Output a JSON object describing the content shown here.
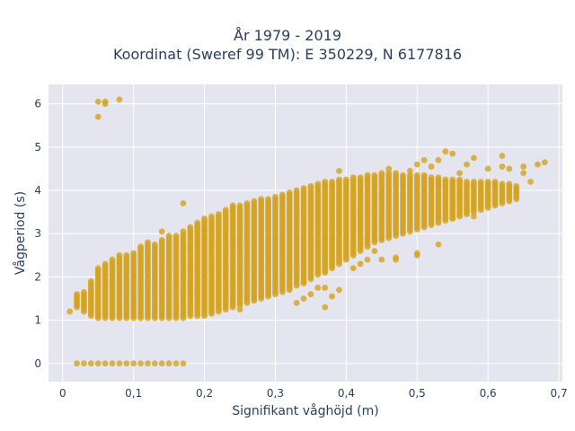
{
  "chart_data": {
    "type": "scatter",
    "title_line1": "År 1979 - 2019",
    "title_line2": "Koordinat (Sweref 99 TM): E 350229, N 6177816",
    "xlabel": "Signifikant våghöjd (m)",
    "ylabel": "Vågperiod (s)",
    "xlim": [
      -0.02,
      0.705
    ],
    "ylim": [
      -0.42,
      6.45
    ],
    "x_ticks": [
      0,
      0.1,
      0.2,
      0.3,
      0.4,
      0.5,
      0.6,
      0.7
    ],
    "x_tick_labels": [
      "0",
      "0,1",
      "0,2",
      "0,3",
      "0,4",
      "0,5",
      "0,6",
      "0,7"
    ],
    "y_ticks": [
      0,
      1,
      2,
      3,
      4,
      5,
      6
    ],
    "y_tick_labels": [
      "0",
      "1",
      "2",
      "3",
      "4",
      "5",
      "6"
    ],
    "grid": true,
    "marker_color": "#d4a31e",
    "plot_bg": "#e5e5ef",
    "column_ranges": [
      [
        0.02,
        1.3,
        1.6
      ],
      [
        0.03,
        1.2,
        1.65
      ],
      [
        0.04,
        1.1,
        1.9
      ],
      [
        0.05,
        1.05,
        2.2
      ],
      [
        0.06,
        1.05,
        2.3
      ],
      [
        0.07,
        1.05,
        2.4
      ],
      [
        0.08,
        1.05,
        2.5
      ],
      [
        0.09,
        1.05,
        2.5
      ],
      [
        0.1,
        1.05,
        2.55
      ],
      [
        0.11,
        1.05,
        2.7
      ],
      [
        0.12,
        1.05,
        2.8
      ],
      [
        0.13,
        1.05,
        2.75
      ],
      [
        0.14,
        1.05,
        2.85
      ],
      [
        0.15,
        1.05,
        2.95
      ],
      [
        0.16,
        1.05,
        2.95
      ],
      [
        0.17,
        1.05,
        3.05
      ],
      [
        0.18,
        1.1,
        3.15
      ],
      [
        0.19,
        1.1,
        3.25
      ],
      [
        0.2,
        1.1,
        3.35
      ],
      [
        0.21,
        1.15,
        3.4
      ],
      [
        0.22,
        1.2,
        3.45
      ],
      [
        0.23,
        1.25,
        3.55
      ],
      [
        0.24,
        1.3,
        3.65
      ],
      [
        0.25,
        1.35,
        3.65
      ],
      [
        0.26,
        1.4,
        3.7
      ],
      [
        0.27,
        1.45,
        3.75
      ],
      [
        0.28,
        1.5,
        3.8
      ],
      [
        0.29,
        1.55,
        3.8
      ],
      [
        0.3,
        1.6,
        3.85
      ],
      [
        0.31,
        1.65,
        3.9
      ],
      [
        0.32,
        1.7,
        3.95
      ],
      [
        0.33,
        1.8,
        4.0
      ],
      [
        0.34,
        1.85,
        4.05
      ],
      [
        0.35,
        1.95,
        4.1
      ],
      [
        0.36,
        2.05,
        4.15
      ],
      [
        0.37,
        2.1,
        4.2
      ],
      [
        0.38,
        2.2,
        4.2
      ],
      [
        0.39,
        2.3,
        4.25
      ],
      [
        0.4,
        2.4,
        4.25
      ],
      [
        0.41,
        2.5,
        4.3
      ],
      [
        0.42,
        2.6,
        4.3
      ],
      [
        0.43,
        2.7,
        4.35
      ],
      [
        0.44,
        2.8,
        4.35
      ],
      [
        0.45,
        2.85,
        4.4
      ],
      [
        0.46,
        2.9,
        4.4
      ],
      [
        0.47,
        2.95,
        4.4
      ],
      [
        0.48,
        3.0,
        4.35
      ],
      [
        0.49,
        3.05,
        4.35
      ],
      [
        0.5,
        3.1,
        4.35
      ],
      [
        0.51,
        3.15,
        4.35
      ],
      [
        0.52,
        3.2,
        4.3
      ],
      [
        0.53,
        3.25,
        4.3
      ],
      [
        0.54,
        3.3,
        4.25
      ],
      [
        0.55,
        3.35,
        4.25
      ],
      [
        0.56,
        3.4,
        4.25
      ],
      [
        0.57,
        3.45,
        4.2
      ],
      [
        0.58,
        3.5,
        4.2
      ],
      [
        0.59,
        3.55,
        4.2
      ],
      [
        0.6,
        3.6,
        4.2
      ],
      [
        0.61,
        3.65,
        4.2
      ],
      [
        0.62,
        3.7,
        4.15
      ],
      [
        0.63,
        3.75,
        4.15
      ],
      [
        0.64,
        3.8,
        4.1
      ]
    ],
    "zero_period_points": [
      [
        0.02,
        0
      ],
      [
        0.03,
        0
      ],
      [
        0.04,
        0
      ],
      [
        0.05,
        0
      ],
      [
        0.06,
        0
      ],
      [
        0.07,
        0
      ],
      [
        0.08,
        0
      ],
      [
        0.09,
        0
      ],
      [
        0.1,
        0
      ],
      [
        0.11,
        0
      ],
      [
        0.12,
        0
      ],
      [
        0.13,
        0
      ],
      [
        0.14,
        0
      ],
      [
        0.15,
        0
      ],
      [
        0.16,
        0
      ],
      [
        0.17,
        0
      ]
    ],
    "scattered_points": [
      [
        0.01,
        1.2
      ],
      [
        0.05,
        6.05
      ],
      [
        0.05,
        5.7
      ],
      [
        0.06,
        6.05
      ],
      [
        0.06,
        6.0
      ],
      [
        0.08,
        6.1
      ],
      [
        0.17,
        3.7
      ],
      [
        0.14,
        3.05
      ],
      [
        0.2,
        3.1
      ],
      [
        0.25,
        1.25
      ],
      [
        0.33,
        1.4
      ],
      [
        0.34,
        1.5
      ],
      [
        0.35,
        1.6
      ],
      [
        0.36,
        1.75
      ],
      [
        0.37,
        1.75
      ],
      [
        0.37,
        1.3
      ],
      [
        0.38,
        1.55
      ],
      [
        0.39,
        1.7
      ],
      [
        0.39,
        4.45
      ],
      [
        0.41,
        2.2
      ],
      [
        0.42,
        2.3
      ],
      [
        0.43,
        2.4
      ],
      [
        0.44,
        2.6
      ],
      [
        0.45,
        2.4
      ],
      [
        0.47,
        2.4
      ],
      [
        0.47,
        2.45
      ],
      [
        0.5,
        2.55
      ],
      [
        0.5,
        2.5
      ],
      [
        0.53,
        2.75
      ],
      [
        0.46,
        4.5
      ],
      [
        0.49,
        4.45
      ],
      [
        0.5,
        4.6
      ],
      [
        0.51,
        4.7
      ],
      [
        0.52,
        4.55
      ],
      [
        0.53,
        4.7
      ],
      [
        0.54,
        4.9
      ],
      [
        0.55,
        4.85
      ],
      [
        0.56,
        4.4
      ],
      [
        0.57,
        4.6
      ],
      [
        0.58,
        4.75
      ],
      [
        0.6,
        4.5
      ],
      [
        0.62,
        4.55
      ],
      [
        0.62,
        4.8
      ],
      [
        0.63,
        4.5
      ],
      [
        0.65,
        4.55
      ],
      [
        0.67,
        4.6
      ],
      [
        0.68,
        4.65
      ],
      [
        0.66,
        4.2
      ],
      [
        0.64,
        3.95
      ],
      [
        0.65,
        4.4
      ],
      [
        0.55,
        3.35
      ],
      [
        0.58,
        3.4
      ]
    ]
  }
}
